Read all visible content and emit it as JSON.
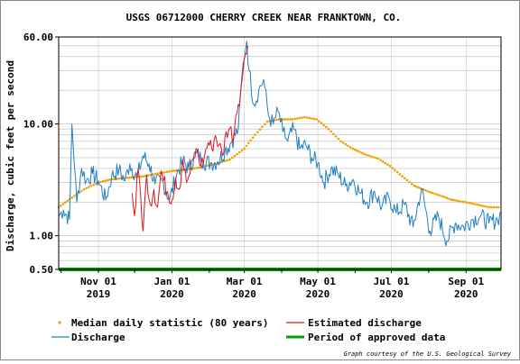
{
  "chart_data": {
    "type": "line",
    "title": "USGS 06712000 CHERRY CREEK NEAR FRANKTOWN, CO.",
    "ylabel": "Discharge, cubic feet per second",
    "xlabel": "",
    "y_scale": "log",
    "ylim": [
      0.5,
      60
    ],
    "xlim": [
      "2019-09-29",
      "2020-09-30"
    ],
    "y_ticks": [
      "0.50",
      "1.00",
      "10.00",
      "60.00"
    ],
    "y_tick_values": [
      0.5,
      1,
      10,
      60
    ],
    "x_ticks": [
      {
        "date": "2019-11-01",
        "month": "Nov 01",
        "year": "2019"
      },
      {
        "date": "2020-01-01",
        "month": "Jan 01",
        "year": "2020"
      },
      {
        "date": "2020-03-01",
        "month": "Mar 01",
        "year": "2020"
      },
      {
        "date": "2020-05-01",
        "month": "May 01",
        "year": "2020"
      },
      {
        "date": "2020-07-01",
        "month": "Jul 01",
        "year": "2020"
      },
      {
        "date": "2020-09-01",
        "month": "Sep 01",
        "year": "2020"
      }
    ],
    "grid": true,
    "legend_position": "bottom",
    "series": [
      {
        "name": "Discharge",
        "color": "#1f7fc4",
        "style": "line",
        "x": [
          "2019-09-29",
          "2019-10-03",
          "2019-10-08",
          "2019-10-10",
          "2019-10-14",
          "2019-10-18",
          "2019-10-22",
          "2019-10-27",
          "2019-11-01",
          "2019-11-07",
          "2019-11-12",
          "2019-11-18",
          "2019-11-23",
          "2019-11-27",
          "2019-12-03",
          "2019-12-08",
          "2019-12-13",
          "2019-12-18",
          "2019-12-24",
          "2019-12-30",
          "2020-01-05",
          "2020-01-10",
          "2020-01-15",
          "2020-01-21",
          "2020-01-27",
          "2020-02-02",
          "2020-02-08",
          "2020-02-14",
          "2020-02-19",
          "2020-02-25",
          "2020-02-29",
          "2020-03-03",
          "2020-03-05",
          "2020-03-09",
          "2020-03-13",
          "2020-03-17",
          "2020-03-21",
          "2020-03-25",
          "2020-03-29",
          "2020-04-02",
          "2020-04-06",
          "2020-04-11",
          "2020-04-16",
          "2020-04-21",
          "2020-04-26",
          "2020-05-01",
          "2020-05-06",
          "2020-05-12",
          "2020-05-18",
          "2020-05-24",
          "2020-05-30",
          "2020-06-05",
          "2020-06-11",
          "2020-06-17",
          "2020-06-23",
          "2020-06-29",
          "2020-07-05",
          "2020-07-12",
          "2020-07-19",
          "2020-07-26",
          "2020-08-02",
          "2020-08-09",
          "2020-08-16",
          "2020-08-23",
          "2020-08-30",
          "2020-09-06",
          "2020-09-13",
          "2020-09-20",
          "2020-09-27",
          "2020-09-30"
        ],
        "y": [
          1.5,
          1.7,
          1.4,
          10,
          2.0,
          4.0,
          3.1,
          3.6,
          3.1,
          2.1,
          3.4,
          3.9,
          3.1,
          4.4,
          3.3,
          5.2,
          4.4,
          2.9,
          3.1,
          2.1,
          3.6,
          4.6,
          4.0,
          5.5,
          4.6,
          4.5,
          4.6,
          5.8,
          6.8,
          9.0,
          35,
          55,
          30,
          15,
          20,
          25,
          12,
          10,
          13,
          8.5,
          7.0,
          9.0,
          6.0,
          6.5,
          5.0,
          4.5,
          3.0,
          4.0,
          3.5,
          2.8,
          3.2,
          2.4,
          2.0,
          2.5,
          1.8,
          2.2,
          1.6,
          1.9,
          1.2,
          2.6,
          1.1,
          1.5,
          0.9,
          1.3,
          1.2,
          1.4,
          1.5,
          1.3,
          1.4,
          1.6
        ]
      },
      {
        "name": "Estimated discharge",
        "color": "#e0141b",
        "style": "line",
        "x": [
          "2019-11-29",
          "2019-12-01",
          "2019-12-04",
          "2019-12-06",
          "2019-12-08",
          "2019-12-11",
          "2019-12-14",
          "2019-12-17",
          "2019-12-20",
          "2019-12-23",
          "2019-12-25",
          "2019-12-28",
          "2020-01-01",
          "2020-01-04",
          "2020-01-07",
          "2020-01-10",
          "2020-01-13",
          "2020-01-16",
          "2020-01-19",
          "2020-01-22",
          "2020-01-25",
          "2020-01-28",
          "2020-01-31",
          "2020-02-03",
          "2020-02-06",
          "2020-02-09",
          "2020-02-12",
          "2020-02-15",
          "2020-02-18",
          "2020-02-21",
          "2020-02-23",
          "2020-02-25",
          "2020-02-27",
          "2020-02-29",
          "2020-03-02",
          "2020-03-04"
        ],
        "y": [
          2.4,
          1.5,
          4.0,
          2.3,
          1.1,
          3.5,
          1.9,
          2.6,
          1.8,
          3.8,
          3.1,
          2.5,
          2.1,
          3.3,
          2.6,
          4.8,
          3.0,
          3.6,
          5.0,
          5.8,
          4.2,
          5.2,
          6.8,
          6.0,
          7.9,
          6.5,
          5.2,
          8.5,
          9.2,
          7.5,
          12,
          15,
          20,
          30,
          42,
          50
        ]
      },
      {
        "name": "Median daily statistic (80 years)",
        "color": "#f0a000",
        "style": "dots",
        "x": [
          "2019-09-29",
          "2019-10-10",
          "2019-10-20",
          "2019-11-01",
          "2019-11-12",
          "2019-11-25",
          "2019-12-08",
          "2019-12-20",
          "2020-01-01",
          "2020-01-12",
          "2020-01-25",
          "2020-02-06",
          "2020-02-18",
          "2020-03-01",
          "2020-03-10",
          "2020-03-20",
          "2020-03-30",
          "2020-04-10",
          "2020-04-20",
          "2020-04-30",
          "2020-05-10",
          "2020-05-20",
          "2020-05-30",
          "2020-06-10",
          "2020-06-20",
          "2020-06-30",
          "2020-07-10",
          "2020-07-20",
          "2020-07-31",
          "2020-08-10",
          "2020-08-20",
          "2020-08-31",
          "2020-09-10",
          "2020-09-20",
          "2020-09-30"
        ],
        "y": [
          1.8,
          2.2,
          2.6,
          3.0,
          3.2,
          3.3,
          3.4,
          3.6,
          3.8,
          3.9,
          4.1,
          4.4,
          4.8,
          6.0,
          8.0,
          10.5,
          11.0,
          11.0,
          11.5,
          11.0,
          9.0,
          7.0,
          6.0,
          5.3,
          4.9,
          4.2,
          3.4,
          2.8,
          2.5,
          2.3,
          2.1,
          2.0,
          1.9,
          1.8,
          1.8
        ]
      },
      {
        "name": "Period of approved data",
        "color": "#00a000",
        "style": "bar",
        "x": [
          "2019-09-29",
          "2020-09-30"
        ],
        "y": [
          0.5,
          0.5
        ]
      }
    ]
  },
  "legend": {
    "median": "Median daily statistic (80 years)",
    "estimated": "Estimated discharge",
    "discharge": "Discharge",
    "approved": "Period of approved data"
  },
  "courtesy": "Graph courtesy of the U.S. Geological Survey"
}
